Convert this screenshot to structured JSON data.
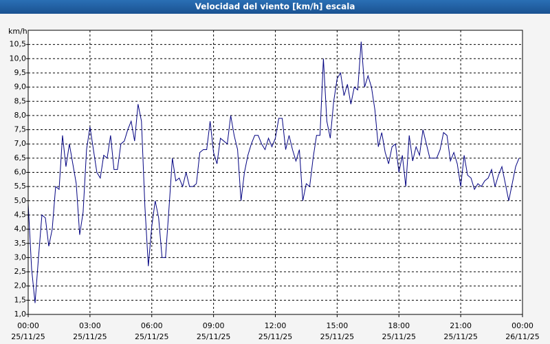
{
  "chart_data": {
    "type": "line",
    "title": "Velocidad del viento [km/h] escala",
    "y_unit": "km/h",
    "xlim": [
      0,
      1440
    ],
    "xticks": [
      {
        "value": 0,
        "label": "00:00",
        "date": "25/11/25"
      },
      {
        "value": 180,
        "label": "03:00",
        "date": "25/11/25"
      },
      {
        "value": 360,
        "label": "06:00",
        "date": "25/11/25"
      },
      {
        "value": 540,
        "label": "09:00",
        "date": "25/11/25"
      },
      {
        "value": 720,
        "label": "12:00",
        "date": "25/11/25"
      },
      {
        "value": 900,
        "label": "15:00",
        "date": "25/11/25"
      },
      {
        "value": 1080,
        "label": "18:00",
        "date": "25/11/25"
      },
      {
        "value": 1260,
        "label": "21:00",
        "date": "25/11/25"
      },
      {
        "value": 1440,
        "label": "00:00",
        "date": "26/11/25"
      }
    ],
    "ylim": [
      1,
      11
    ],
    "yticks": [
      {
        "value": 1.0,
        "label": "1,0"
      },
      {
        "value": 1.5,
        "label": "1,5"
      },
      {
        "value": 2.0,
        "label": "2,0"
      },
      {
        "value": 2.5,
        "label": "2,5"
      },
      {
        "value": 3.0,
        "label": "3,0"
      },
      {
        "value": 3.5,
        "label": "3,5"
      },
      {
        "value": 4.0,
        "label": "4,0"
      },
      {
        "value": 4.5,
        "label": "4,5"
      },
      {
        "value": 5.0,
        "label": "5,0"
      },
      {
        "value": 5.5,
        "label": "5,5"
      },
      {
        "value": 6.0,
        "label": "6,0"
      },
      {
        "value": 6.5,
        "label": "6,5"
      },
      {
        "value": 7.0,
        "label": "7,0"
      },
      {
        "value": 7.5,
        "label": "7,5"
      },
      {
        "value": 8.0,
        "label": "8,0"
      },
      {
        "value": 8.5,
        "label": "8,5"
      },
      {
        "value": 9.0,
        "label": "9,0"
      },
      {
        "value": 9.5,
        "label": "9,5"
      },
      {
        "value": 10.0,
        "label": "10,0"
      },
      {
        "value": 10.5,
        "label": "10,5"
      }
    ],
    "grid": true,
    "x": [
      0,
      10,
      20,
      30,
      40,
      50,
      60,
      70,
      80,
      90,
      100,
      110,
      120,
      130,
      140,
      150,
      160,
      170,
      180,
      190,
      200,
      210,
      220,
      230,
      240,
      250,
      260,
      270,
      280,
      290,
      300,
      310,
      320,
      330,
      340,
      350,
      360,
      370,
      380,
      390,
      400,
      410,
      420,
      430,
      440,
      450,
      460,
      470,
      480,
      490,
      500,
      510,
      520,
      530,
      540,
      550,
      560,
      570,
      580,
      590,
      600,
      610,
      620,
      630,
      640,
      650,
      660,
      670,
      680,
      690,
      700,
      710,
      720,
      730,
      740,
      750,
      760,
      770,
      780,
      790,
      800,
      810,
      820,
      830,
      840,
      850,
      860,
      870,
      880,
      890,
      900,
      910,
      920,
      930,
      940,
      950,
      960,
      970,
      980,
      990,
      1000,
      1010,
      1020,
      1030,
      1040,
      1050,
      1060,
      1070,
      1080,
      1090,
      1100,
      1110,
      1120,
      1130,
      1140,
      1150,
      1160,
      1170,
      1180,
      1190,
      1200,
      1210,
      1220,
      1230,
      1240,
      1250,
      1260,
      1270,
      1280,
      1290,
      1300,
      1310,
      1320,
      1330,
      1340,
      1350,
      1360,
      1370,
      1380,
      1390,
      1400,
      1410,
      1420,
      1430
    ],
    "series": [
      {
        "color": "#000080",
        "values": [
          4.9,
          2.6,
          1.4,
          3.0,
          4.5,
          4.4,
          3.4,
          4.0,
          5.5,
          5.4,
          7.3,
          6.2,
          7.0,
          6.3,
          5.6,
          3.8,
          4.6,
          6.8,
          7.6,
          6.8,
          6.0,
          5.8,
          6.6,
          6.5,
          7.3,
          6.1,
          6.1,
          7.0,
          7.1,
          7.5,
          7.8,
          7.1,
          8.4,
          7.8,
          4.8,
          2.7,
          4.1,
          5.0,
          4.4,
          3.0,
          3.0,
          4.7,
          6.5,
          5.7,
          5.8,
          5.5,
          6.0,
          5.5,
          5.5,
          5.6,
          6.7,
          6.8,
          6.8,
          7.8,
          6.7,
          6.3,
          7.2,
          7.1,
          7.0,
          8.0,
          7.3,
          6.8,
          5.0,
          6.0,
          6.6,
          7.0,
          7.3,
          7.3,
          7.0,
          6.8,
          7.2,
          6.9,
          7.2,
          7.9,
          7.9,
          6.8,
          7.3,
          6.8,
          6.4,
          6.8,
          5.0,
          5.6,
          5.5,
          6.5,
          7.3,
          7.3,
          10.0,
          7.8,
          7.2,
          8.5,
          9.3,
          9.5,
          8.7,
          9.1,
          8.4,
          9.0,
          8.9,
          10.6,
          9.0,
          9.4,
          9.0,
          8.2,
          6.9,
          7.4,
          6.7,
          6.3,
          6.9,
          7.0,
          6.0,
          6.6,
          5.5,
          7.3,
          6.4,
          6.9,
          6.6,
          7.5,
          7.0,
          6.5,
          6.5,
          6.5,
          6.8,
          7.4,
          7.3,
          6.4,
          6.7,
          6.3,
          5.5,
          6.6,
          5.9,
          5.8,
          5.4,
          5.6,
          5.5,
          5.7,
          5.8,
          6.1,
          5.5,
          5.9,
          6.2,
          5.6,
          5.0,
          5.6,
          6.2,
          6.5
        ]
      }
    ]
  }
}
